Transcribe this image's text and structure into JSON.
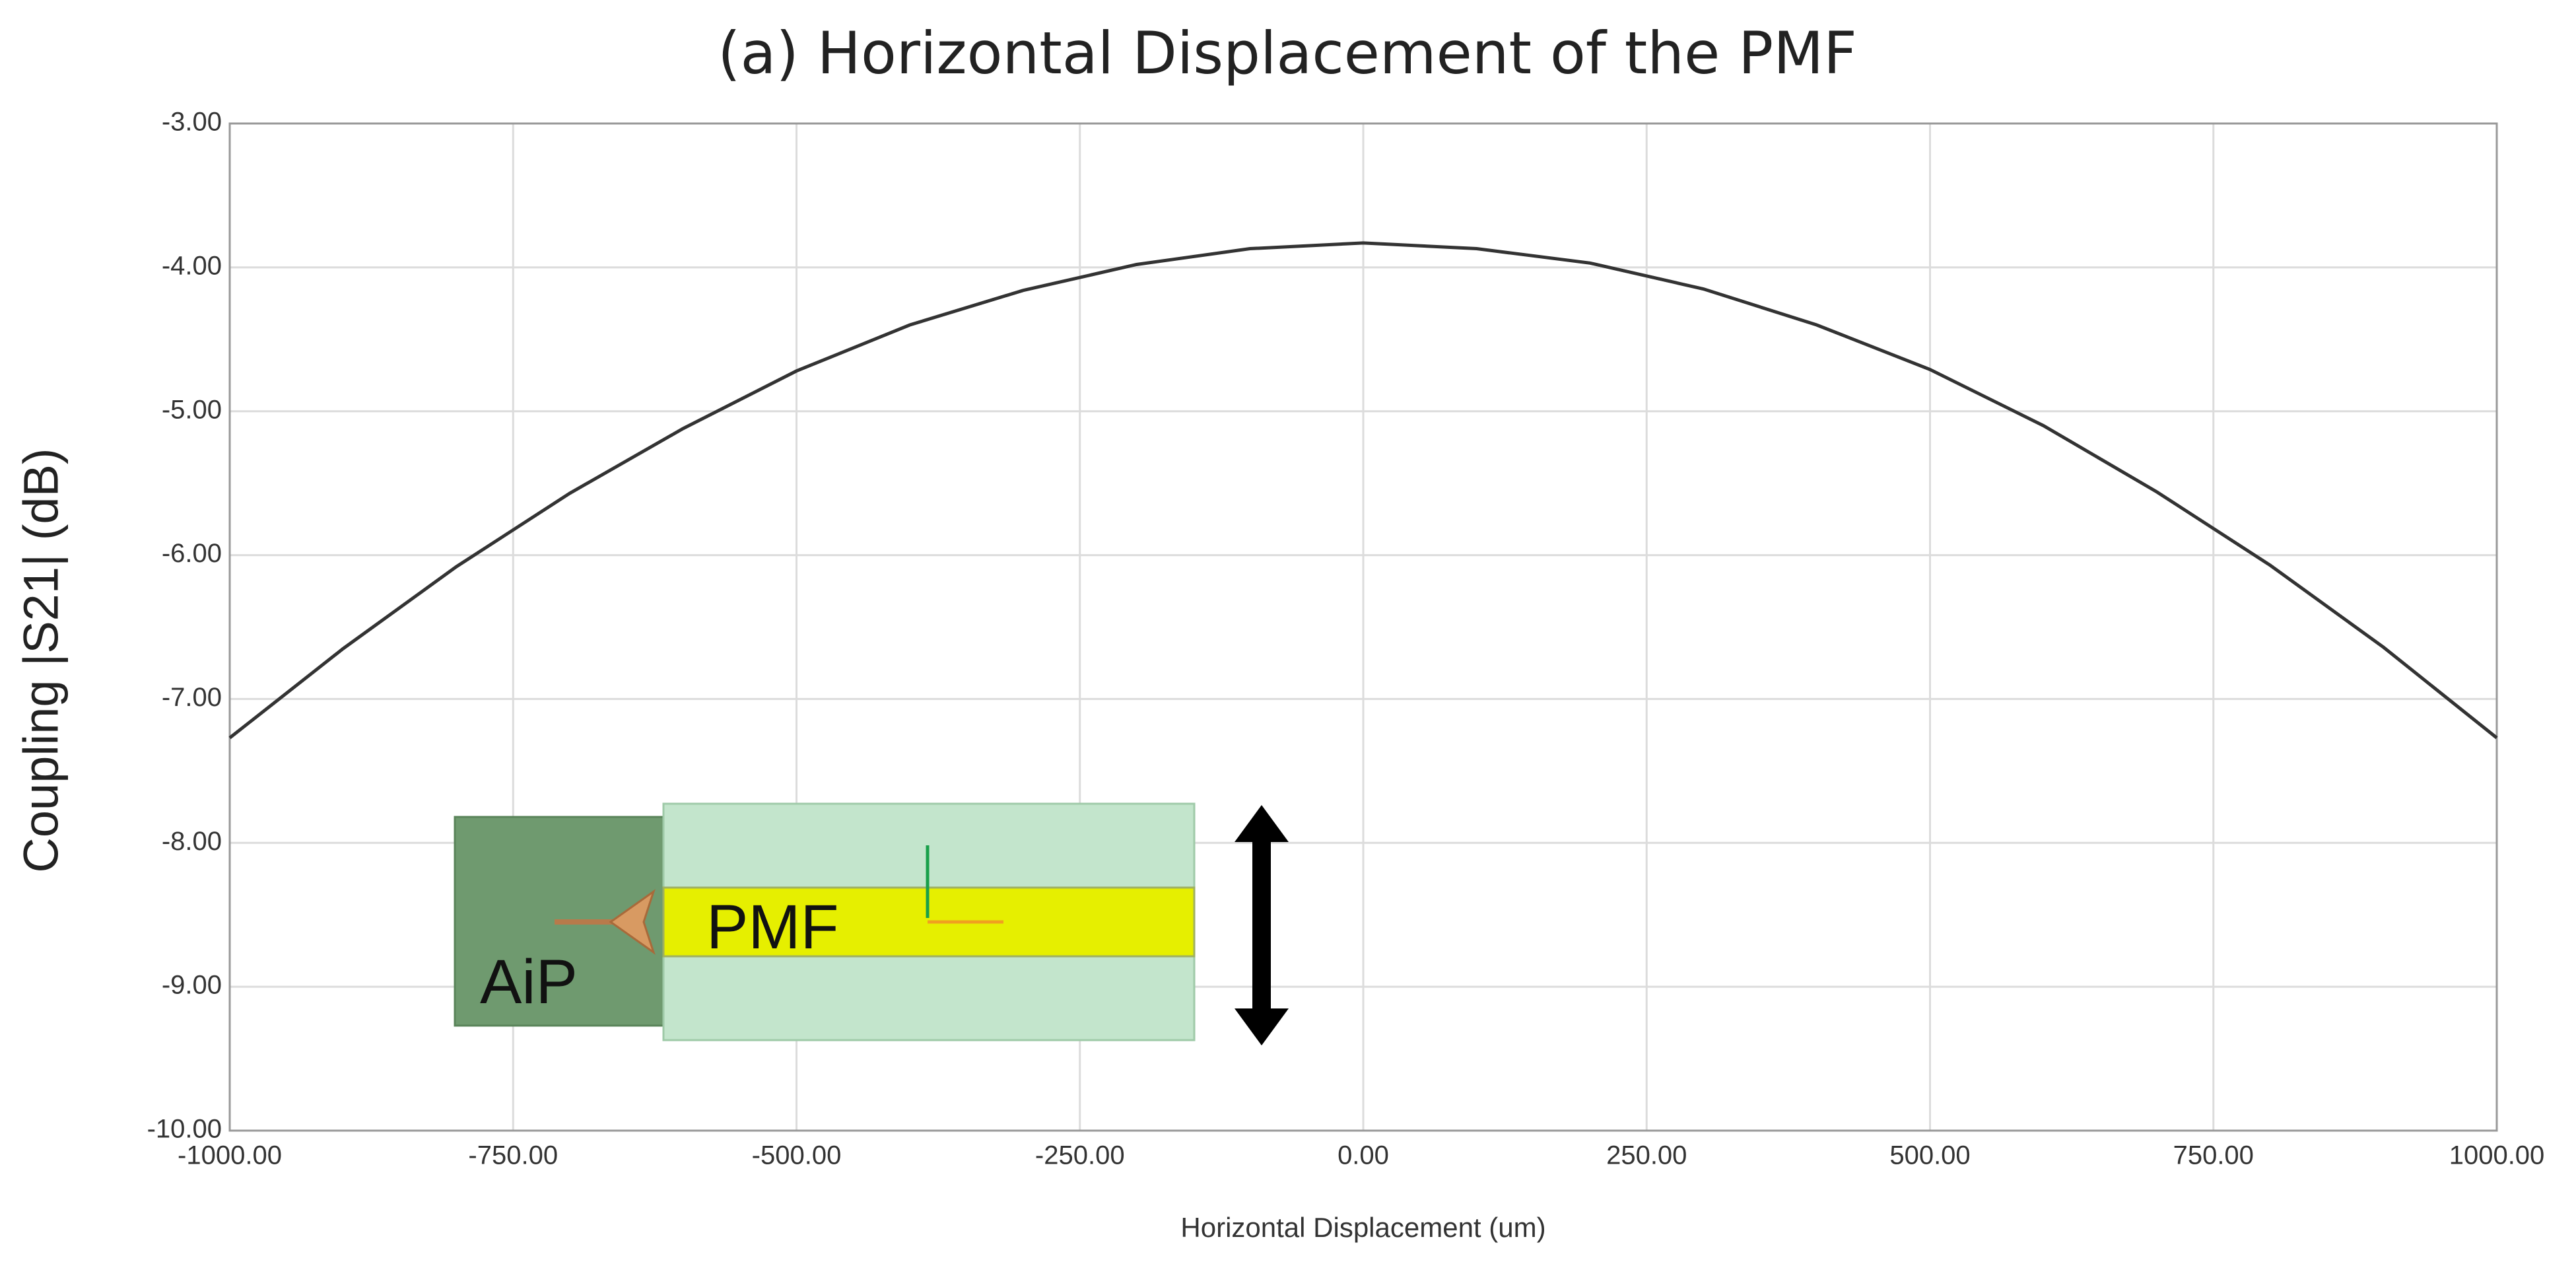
{
  "chart_data": {
    "type": "line",
    "title": "(a) Horizontal Displacement of the PMF",
    "x_label": "Horizontal Displacement (um)",
    "y_label": "Coupling |S21| (dB)",
    "x": [
      -1000,
      -900,
      -800,
      -700,
      -600,
      -500,
      -400,
      -300,
      -200,
      -100,
      0,
      100,
      200,
      300,
      400,
      500,
      600,
      700,
      800,
      900,
      1000
    ],
    "series": [
      {
        "name": "Coupling",
        "color": "#333333",
        "values": [
          -7.27,
          -6.65,
          -6.08,
          -5.57,
          -5.12,
          -4.72,
          -4.4,
          -4.16,
          -3.98,
          -3.87,
          -3.83,
          -3.87,
          -3.97,
          -4.15,
          -4.4,
          -4.71,
          -5.1,
          -5.56,
          -6.07,
          -6.64,
          -7.27
        ]
      }
    ],
    "xlim": [
      -1000,
      1000
    ],
    "xticks": [
      {
        "value": -1000,
        "label": "-1000.00"
      },
      {
        "value": -750,
        "label": "-750.00"
      },
      {
        "value": -500,
        "label": "-500.00"
      },
      {
        "value": -250,
        "label": "-250.00"
      },
      {
        "value": 0,
        "label": "0.00"
      },
      {
        "value": 250,
        "label": "250.00"
      },
      {
        "value": 500,
        "label": "500.00"
      },
      {
        "value": 750,
        "label": "750.00"
      },
      {
        "value": 1000,
        "label": "1000.00"
      }
    ],
    "ylim": [
      -10,
      -3
    ],
    "yticks": [
      {
        "value": -10,
        "label": "-10.00"
      },
      {
        "value": -9,
        "label": "-9.00"
      },
      {
        "value": -8,
        "label": "-8.00"
      },
      {
        "value": -7,
        "label": "-7.00"
      },
      {
        "value": -6,
        "label": "-6.00"
      },
      {
        "value": -5,
        "label": "-5.00"
      },
      {
        "value": -4,
        "label": "-4.00"
      },
      {
        "value": -3,
        "label": "-3.00"
      }
    ],
    "grid": true
  },
  "inset": {
    "labels": [
      "AiP",
      "PMF"
    ]
  }
}
